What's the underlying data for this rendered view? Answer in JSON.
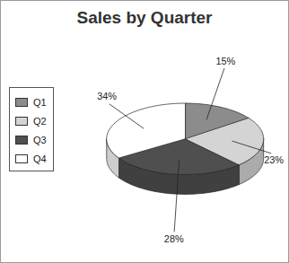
{
  "chart_data": {
    "type": "pie",
    "title": "Sales by Quarter",
    "categories": [
      "Q1",
      "Q2",
      "Q3",
      "Q4"
    ],
    "values": [
      15,
      23,
      28,
      34
    ],
    "value_labels": [
      "15%",
      "23%",
      "28%",
      "34%"
    ],
    "colors": [
      "#8c8c8c",
      "#d4d4d4",
      "#4f4f4f",
      "#ffffff"
    ],
    "legend": "left",
    "data_labels": true
  }
}
